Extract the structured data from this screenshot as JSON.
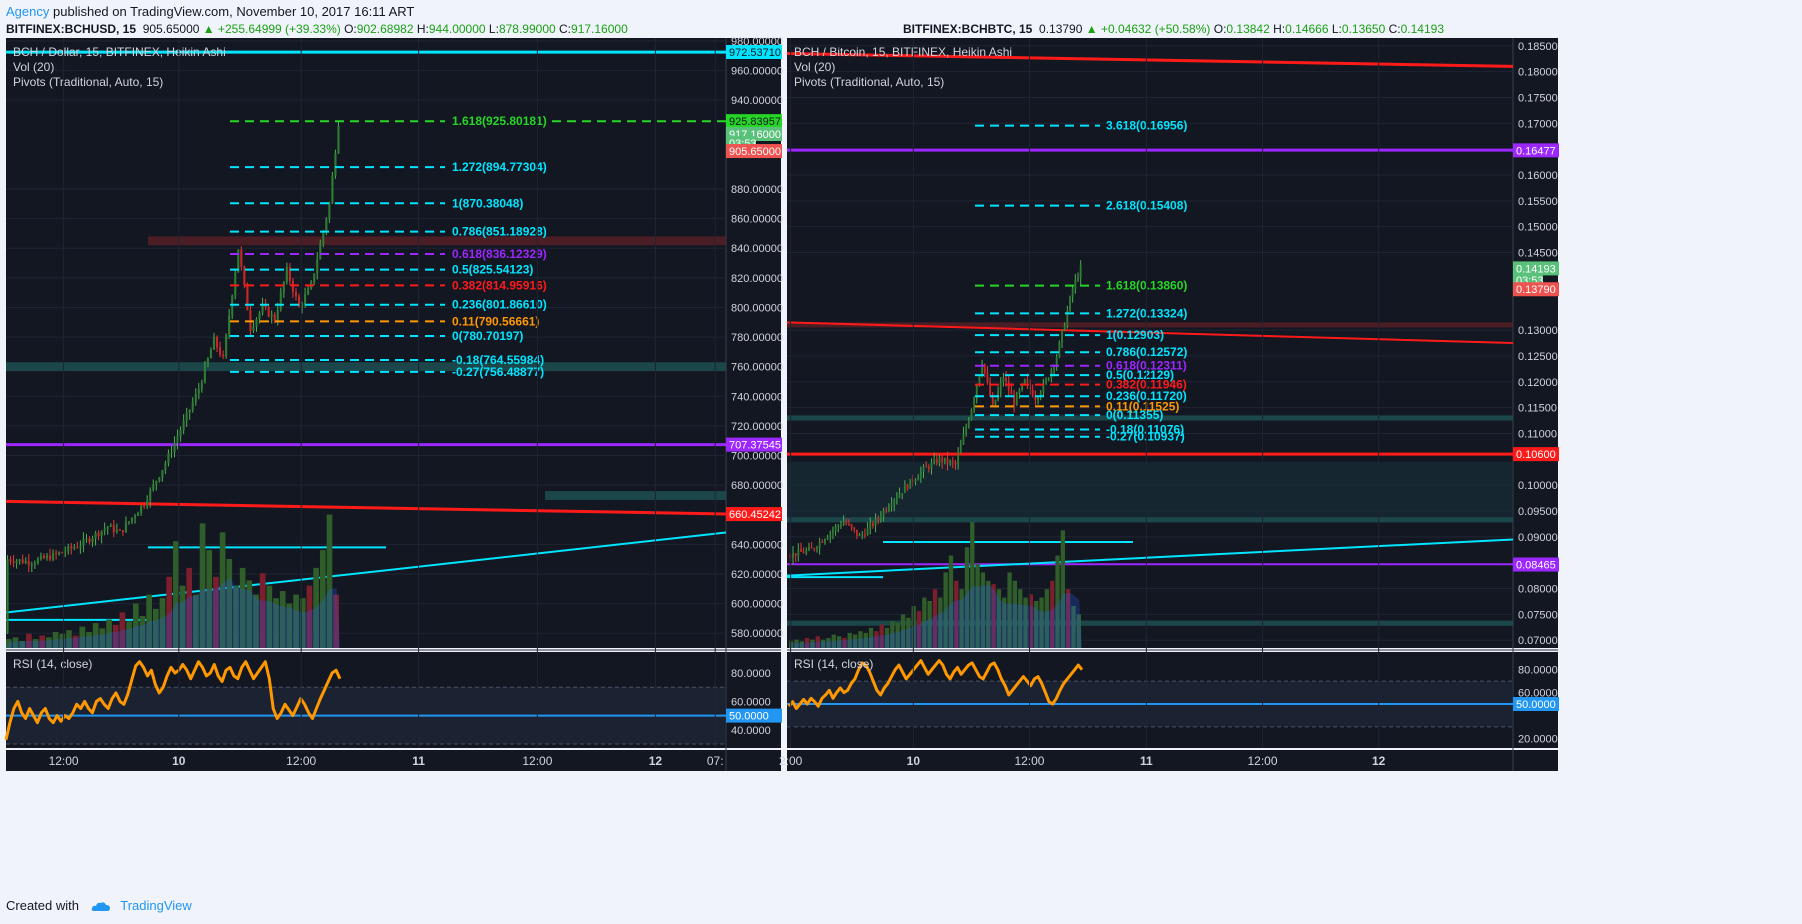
{
  "header": {
    "author": "Agency",
    "published_text": "published on TradingView.com, November 10, 2017 16:11 ART"
  },
  "footer": {
    "created_with": "Created with",
    "brand": "TradingView"
  },
  "colors": {
    "bg": "#131722",
    "grid": "#1f2433",
    "cyan": "#00e5ff",
    "red": "#ff1a1a",
    "purple": "#9c27ff",
    "green": "#26d626",
    "orange": "#ff9800",
    "rsi": "#ff9800",
    "rsi_mid": "#2196f3",
    "up_candle": "#2e7d32",
    "down_candle": "#c62828"
  },
  "chart_data": [
    {
      "type": "candlestick",
      "ticker": {
        "symbol": "BITFINEX:BCHUSD, 15",
        "last": "905.65000",
        "change": "+255.64999 (+39.33%)",
        "o_label": "O:",
        "o": "902.68982",
        "h_label": "H:",
        "h": "944.00000",
        "l_label": "L:",
        "l": "878.99000",
        "c_label": "C:",
        "c": "917.16000"
      },
      "legend": [
        "BCH / Dollar, 15, BITFINEX, Heikin Ashi",
        "Vol (20)",
        "Pivots (Traditional, Auto, 15)"
      ],
      "ylim": [
        570,
        982
      ],
      "y_ticks": [
        {
          "v": 980,
          "label": "980.00000"
        },
        {
          "v": 960,
          "label": "960.00000"
        },
        {
          "v": 940,
          "label": "940.00000"
        },
        {
          "v": 880,
          "label": "880.00000"
        },
        {
          "v": 860,
          "label": "860.00000"
        },
        {
          "v": 840,
          "label": "840.00000"
        },
        {
          "v": 820,
          "label": "820.00000"
        },
        {
          "v": 800,
          "label": "800.00000"
        },
        {
          "v": 780,
          "label": "780.00000"
        },
        {
          "v": 760,
          "label": "760.00000"
        },
        {
          "v": 740,
          "label": "740.00000"
        },
        {
          "v": 720,
          "label": "720.00000"
        },
        {
          "v": 700,
          "label": "700.00000"
        },
        {
          "v": 680,
          "label": "680.00000"
        },
        {
          "v": 640,
          "label": "640.00000"
        },
        {
          "v": 620,
          "label": "620.00000"
        },
        {
          "v": 600,
          "label": "600.00000"
        },
        {
          "v": 580,
          "label": "580.00000"
        }
      ],
      "price_tags": [
        {
          "v": 972.5371,
          "label": "972.53710",
          "color": "#00e5ff",
          "dark": true
        },
        {
          "v": 925.83957,
          "label": "925.83957",
          "color": "#26d626",
          "dark": true
        },
        {
          "v": 917.16,
          "label": "917.16000",
          "color": "#5ac17a",
          "dark": false
        },
        {
          "v": 911,
          "label": "03:53",
          "color": "#5ac17a",
          "dark": false,
          "short": true
        },
        {
          "v": 905.65,
          "label": "905.65000",
          "color": "#ef5350",
          "dark": false
        },
        {
          "v": 707.37545,
          "label": "707.37545",
          "color": "#9c27ff",
          "dark": false
        },
        {
          "v": 660.45242,
          "label": "660.45242",
          "color": "#ff1a1a",
          "dark": false
        }
      ],
      "fib_levels": [
        {
          "label": "1.618(925.80181)",
          "v": 925.80181,
          "color": "#26d626"
        },
        {
          "label": "1.272(894.77304)",
          "v": 894.77304,
          "color": "#00e5ff"
        },
        {
          "label": "1(870.38048)",
          "v": 870.38048,
          "color": "#00e5ff"
        },
        {
          "label": "0.786(851.18928)",
          "v": 851.18928,
          "color": "#00e5ff"
        },
        {
          "label": "0.618(836.12329)",
          "v": 836.12329,
          "color": "#9c27ff"
        },
        {
          "label": "0.5(825.54123)",
          "v": 825.54123,
          "color": "#00e5ff"
        },
        {
          "label": "0.382(814.95916)",
          "v": 814.95916,
          "color": "#ff1a1a"
        },
        {
          "label": "0.236(801.86610)",
          "v": 801.8661,
          "color": "#00e5ff"
        },
        {
          "label": "0.11(790.56661)",
          "v": 790.56661,
          "color": "#ff9800"
        },
        {
          "label": "0(780.70197)",
          "v": 780.70197,
          "color": "#00e5ff"
        },
        {
          "label": "-0.18(764.55984)",
          "v": 764.55984,
          "color": "#00e5ff"
        },
        {
          "label": "-0.27(756.48877)",
          "v": 756.48877,
          "color": "#00e5ff"
        }
      ],
      "candles": {
        "start": 580,
        "end": 925,
        "points": [
          [
            0,
            630
          ],
          [
            8,
            628
          ],
          [
            16,
            633
          ],
          [
            24,
            640
          ],
          [
            33,
            652
          ],
          [
            37,
            648
          ],
          [
            45,
            668
          ],
          [
            52,
            695
          ],
          [
            58,
            722
          ],
          [
            63,
            745
          ],
          [
            68,
            778
          ],
          [
            71,
            765
          ],
          [
            76,
            840
          ],
          [
            80,
            786
          ],
          [
            84,
            800
          ],
          [
            88,
            792
          ],
          [
            92,
            825
          ],
          [
            96,
            800
          ],
          [
            100,
            815
          ],
          [
            106,
            870
          ],
          [
            109,
            925
          ]
        ]
      },
      "volume": {
        "max": 100,
        "values": [
          5,
          6,
          4,
          8,
          5,
          7,
          6,
          9,
          8,
          10,
          7,
          12,
          9,
          14,
          11,
          16,
          13,
          20,
          15,
          25,
          18,
          30,
          22,
          28,
          40,
          60,
          35,
          45,
          30,
          70,
          55,
          40,
          65,
          50,
          35,
          45,
          38,
          30,
          42,
          35,
          28,
          32,
          25,
          30,
          28,
          35,
          45,
          55,
          75,
          30
        ]
      },
      "rsi": {
        "title": "RSI (14, close)",
        "ylim": [
          30,
          92
        ],
        "y_ticks": [
          {
            "v": 80,
            "label": "80.0000"
          },
          {
            "v": 60,
            "label": "60.0000"
          },
          {
            "v": 40,
            "label": "40.0000"
          }
        ],
        "mid_tag": {
          "v": 50,
          "label": "50.0000"
        },
        "bands": [
          70,
          30
        ],
        "values": [
          33,
          45,
          55,
          60,
          52,
          48,
          55,
          50,
          45,
          52,
          55,
          48,
          45,
          50,
          46,
          50,
          48,
          52,
          58,
          55,
          60,
          55,
          52,
          60,
          62,
          58,
          55,
          62,
          66,
          60,
          58,
          65,
          75,
          85,
          88,
          84,
          78,
          82,
          72,
          66,
          70,
          78,
          84,
          80,
          82,
          86,
          82,
          76,
          82,
          88,
          84,
          78,
          80,
          86,
          78,
          74,
          82,
          84,
          78,
          76,
          84,
          88,
          82,
          76,
          80,
          84,
          88,
          76,
          55,
          48,
          52,
          58,
          54,
          50,
          56,
          62,
          58,
          52,
          48,
          55,
          62,
          68,
          74,
          80,
          82,
          76
        ]
      },
      "x_ticks": [
        {
          "x": 0.08,
          "label": "12:00"
        },
        {
          "x": 0.24,
          "label": "10"
        },
        {
          "x": 0.41,
          "label": "12:00"
        },
        {
          "x": 0.573,
          "label": "11"
        },
        {
          "x": 0.738,
          "label": "12:00"
        },
        {
          "x": 0.902,
          "label": "12"
        },
        {
          "x": 0.985,
          "label": "07:"
        }
      ]
    },
    {
      "type": "candlestick",
      "ticker": {
        "symbol": "BITFINEX:BCHBTC, 15",
        "last": "0.13790",
        "change": "+0.04632 (+50.58%)",
        "o_label": "O:",
        "o": "0.13842",
        "h_label": "H:",
        "h": "0.14666",
        "l_label": "L:",
        "l": "0.13650",
        "c_label": "C:",
        "c": "0.14193"
      },
      "legend": [
        "BCH / Bitcoin, 15, BITFINEX, Heikin Ashi",
        "Vol (20)",
        "Pivots (Traditional, Auto, 15)"
      ],
      "ylim": [
        0.0685,
        0.1865
      ],
      "y_ticks": [
        {
          "v": 0.185,
          "label": "0.18500"
        },
        {
          "v": 0.18,
          "label": "0.18000"
        },
        {
          "v": 0.175,
          "label": "0.17500"
        },
        {
          "v": 0.17,
          "label": "0.17000"
        },
        {
          "v": 0.16,
          "label": "0.16000"
        },
        {
          "v": 0.155,
          "label": "0.15500"
        },
        {
          "v": 0.15,
          "label": "0.15000"
        },
        {
          "v": 0.145,
          "label": "0.14500"
        },
        {
          "v": 0.13,
          "label": "0.13000"
        },
        {
          "v": 0.125,
          "label": "0.12500"
        },
        {
          "v": 0.12,
          "label": "0.12000"
        },
        {
          "v": 0.115,
          "label": "0.11500"
        },
        {
          "v": 0.11,
          "label": "0.11000"
        },
        {
          "v": 0.1,
          "label": "0.10000"
        },
        {
          "v": 0.095,
          "label": "0.09500"
        },
        {
          "v": 0.09,
          "label": "0.09000"
        },
        {
          "v": 0.08,
          "label": "0.08000"
        },
        {
          "v": 0.075,
          "label": "0.07500"
        },
        {
          "v": 0.07,
          "label": "0.07000"
        }
      ],
      "price_tags": [
        {
          "v": 0.16477,
          "label": "0.16477",
          "color": "#9c27ff",
          "dark": false
        },
        {
          "v": 0.14193,
          "label": "0.14193",
          "color": "#5ac17a",
          "dark": false
        },
        {
          "v": 0.1397,
          "label": "03:53",
          "color": "#5ac17a",
          "dark": false,
          "short": true
        },
        {
          "v": 0.1379,
          "label": "0.13790",
          "color": "#ef5350",
          "dark": false
        },
        {
          "v": 0.106,
          "label": "0.10600",
          "color": "#ff1a1a",
          "dark": false
        },
        {
          "v": 0.08465,
          "label": "0.08465",
          "color": "#9c27ff",
          "dark": false
        }
      ],
      "fib_levels": [
        {
          "label": "3.618(0.16956)",
          "v": 0.16956,
          "color": "#00e5ff"
        },
        {
          "label": "2.618(0.15408)",
          "v": 0.15408,
          "color": "#00e5ff"
        },
        {
          "label": "1.618(0.13860)",
          "v": 0.1386,
          "color": "#26d626"
        },
        {
          "label": "1.272(0.13324)",
          "v": 0.13324,
          "color": "#00e5ff"
        },
        {
          "label": "1(0.12903)",
          "v": 0.12903,
          "color": "#00e5ff"
        },
        {
          "label": "0.786(0.12572)",
          "v": 0.12572,
          "color": "#00e5ff"
        },
        {
          "label": "0.618(0.12311)",
          "v": 0.12311,
          "color": "#9c27ff"
        },
        {
          "label": "0.5(0.12129)",
          "v": 0.12129,
          "color": "#00e5ff"
        },
        {
          "label": "0.382(0.11946)",
          "v": 0.11946,
          "color": "#ff1a1a"
        },
        {
          "label": "0.236(0.11720)",
          "v": 0.1172,
          "color": "#00e5ff"
        },
        {
          "label": "0.11(0.11525)",
          "v": 0.11525,
          "color": "#ff9800"
        },
        {
          "label": "0(0.11355)",
          "v": 0.11355,
          "color": "#00e5ff"
        },
        {
          "label": "-0.18(0.11076)",
          "v": 0.11076,
          "color": "#00e5ff"
        },
        {
          "label": "-0.27(0.10937)",
          "v": 0.10937,
          "color": "#00e5ff"
        }
      ],
      "candles": {
        "start": 0.0865,
        "end": 0.142,
        "points": [
          [
            0,
            0.0865
          ],
          [
            8,
            0.0875
          ],
          [
            14,
            0.0905
          ],
          [
            20,
            0.093
          ],
          [
            26,
            0.09
          ],
          [
            32,
            0.093
          ],
          [
            38,
            0.097
          ],
          [
            44,
            0.1
          ],
          [
            50,
            0.103
          ],
          [
            56,
            0.105
          ],
          [
            62,
            0.104
          ],
          [
            68,
            0.115
          ],
          [
            72,
            0.124
          ],
          [
            76,
            0.115
          ],
          [
            80,
            0.121
          ],
          [
            84,
            0.116
          ],
          [
            88,
            0.12
          ],
          [
            92,
            0.117
          ],
          [
            96,
            0.12
          ],
          [
            100,
            0.125
          ],
          [
            106,
            0.138
          ],
          [
            109,
            0.142
          ]
        ]
      },
      "volume": {
        "max": 100,
        "values": [
          4,
          5,
          4,
          6,
          5,
          7,
          5,
          6,
          8,
          7,
          6,
          9,
          8,
          10,
          9,
          12,
          10,
          14,
          12,
          16,
          15,
          20,
          18,
          25,
          22,
          30,
          28,
          35,
          30,
          45,
          55,
          40,
          35,
          60,
          75,
          50,
          45,
          40,
          38,
          35,
          30,
          45,
          40,
          35,
          30,
          32,
          28,
          30,
          35,
          40,
          55,
          70,
          35,
          25,
          20
        ]
      },
      "rsi": {
        "title": "RSI (14, close)",
        "ylim": [
          15,
          92
        ],
        "y_ticks": [
          {
            "v": 80,
            "label": "80.0000"
          },
          {
            "v": 60,
            "label": "60.0000"
          },
          {
            "v": 20,
            "label": "20.0000"
          }
        ],
        "mid_tag": {
          "v": 50,
          "label": "50.0000"
        },
        "bands": [
          70,
          30
        ],
        "values": [
          48,
          52,
          46,
          50,
          54,
          50,
          55,
          52,
          48,
          55,
          58,
          62,
          55,
          60,
          64,
          60,
          62,
          68,
          72,
          80,
          86,
          84,
          78,
          70,
          62,
          58,
          64,
          68,
          74,
          80,
          84,
          78,
          72,
          76,
          80,
          84,
          88,
          82,
          76,
          80,
          84,
          88,
          84,
          76,
          72,
          78,
          82,
          76,
          80,
          84,
          86,
          80,
          74,
          72,
          78,
          84,
          86,
          80,
          72,
          66,
          58,
          62,
          66,
          70,
          74,
          70,
          66,
          72,
          74,
          68,
          60,
          52,
          50,
          55,
          62,
          68,
          72,
          76,
          80,
          84,
          80
        ]
      },
      "x_ticks": [
        {
          "x": 0.005,
          "label": "2:00"
        },
        {
          "x": 0.174,
          "label": "10"
        },
        {
          "x": 0.334,
          "label": "12:00"
        },
        {
          "x": 0.495,
          "label": "11"
        },
        {
          "x": 0.655,
          "label": "12:00"
        },
        {
          "x": 0.815,
          "label": "12"
        }
      ]
    }
  ]
}
